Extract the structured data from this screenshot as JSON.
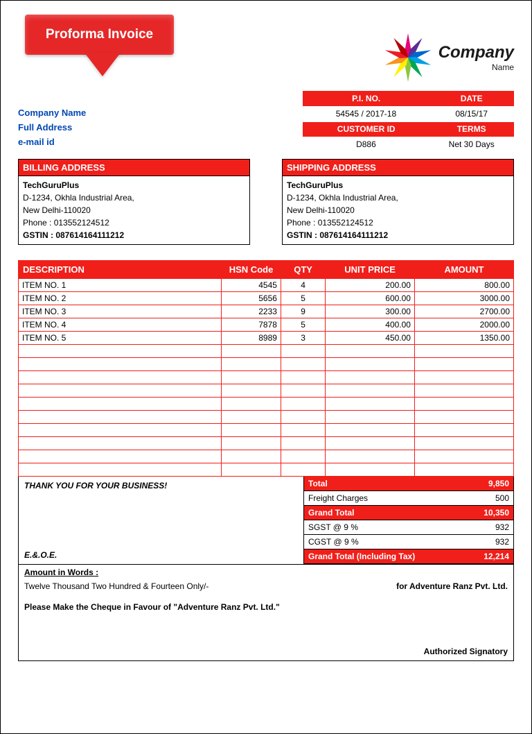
{
  "badge_title": "Proforma Invoice",
  "logo": {
    "main": "Company",
    "sub": "Name",
    "colors": [
      "#e6007a",
      "#5a2e91",
      "#0066cc",
      "#00a0e6",
      "#00a651",
      "#8cc63f",
      "#fff200",
      "#f7941e",
      "#ed1c24",
      "#b80000"
    ]
  },
  "meta": {
    "headers1": [
      "P.I. NO.",
      "DATE"
    ],
    "values1": [
      "54545 / 2017-18",
      "08/15/17"
    ],
    "headers2": [
      "CUSTOMER ID",
      "TERMS"
    ],
    "values2": [
      "D886",
      "Net 30 Days"
    ]
  },
  "seller": {
    "name": "Company Name",
    "address": "Full Address",
    "email": "e-mail id"
  },
  "billing": {
    "title": "BILLING ADDRESS",
    "company": "TechGuruPlus",
    "line1": "D-1234, Okhla Industrial Area,",
    "line2": "New Delhi-110020",
    "phone": "Phone : 013552124512",
    "gstin": "GSTIN : 087614164111212"
  },
  "shipping": {
    "title": "SHIPPING ADDRESS",
    "company": "TechGuruPlus",
    "line1": "D-1234, Okhla Industrial Area,",
    "line2": "New Delhi-110020",
    "phone": "Phone : 013552124512",
    "gstin": "GSTIN : 087614164111212"
  },
  "items": {
    "headers": [
      "DESCRIPTION",
      "HSN Code",
      "QTY",
      "UNIT PRICE",
      "AMOUNT"
    ],
    "col_widths_pct": [
      41,
      12,
      9,
      18,
      20
    ],
    "rows": [
      [
        "ITEM NO. 1",
        "4545",
        "4",
        "200.00",
        "800.00"
      ],
      [
        "ITEM NO. 2",
        "5656",
        "5",
        "600.00",
        "3000.00"
      ],
      [
        "ITEM NO. 3",
        "2233",
        "9",
        "300.00",
        "2700.00"
      ],
      [
        "ITEM NO. 4",
        "7878",
        "5",
        "400.00",
        "2000.00"
      ],
      [
        "ITEM NO. 5",
        "8989",
        "3",
        "450.00",
        "1350.00"
      ]
    ],
    "blank_rows": 10
  },
  "thanks": "THANK YOU FOR YOUR BUSINESS!",
  "eoe": "E.&.O.E.",
  "totals": [
    {
      "label": "Total",
      "value": "9,850",
      "red": true
    },
    {
      "label": "Freight Charges",
      "value": "500",
      "red": false
    },
    {
      "label": "Grand Total",
      "value": "10,350",
      "red": true
    },
    {
      "label": "SGST @ 9 %",
      "value": "932",
      "red": false
    },
    {
      "label": "CGST @ 9 %",
      "value": "932",
      "red": false
    },
    {
      "label": "Grand Total (Including Tax)",
      "value": "12,214",
      "red": true
    }
  ],
  "footer": {
    "words_label": "Amount in Words :",
    "words": "Twelve Thousand Two Hundred & Fourteen Only/-",
    "for": "for Adventure Ranz Pvt. Ltd.",
    "cheque": "Please Make the Cheque in Favour of \"Adventure Ranz Pvt. Ltd.\"",
    "signatory": "Authorized Signatory"
  },
  "colors": {
    "brand": "#f01f1a",
    "text_blue": "#0047b3"
  }
}
